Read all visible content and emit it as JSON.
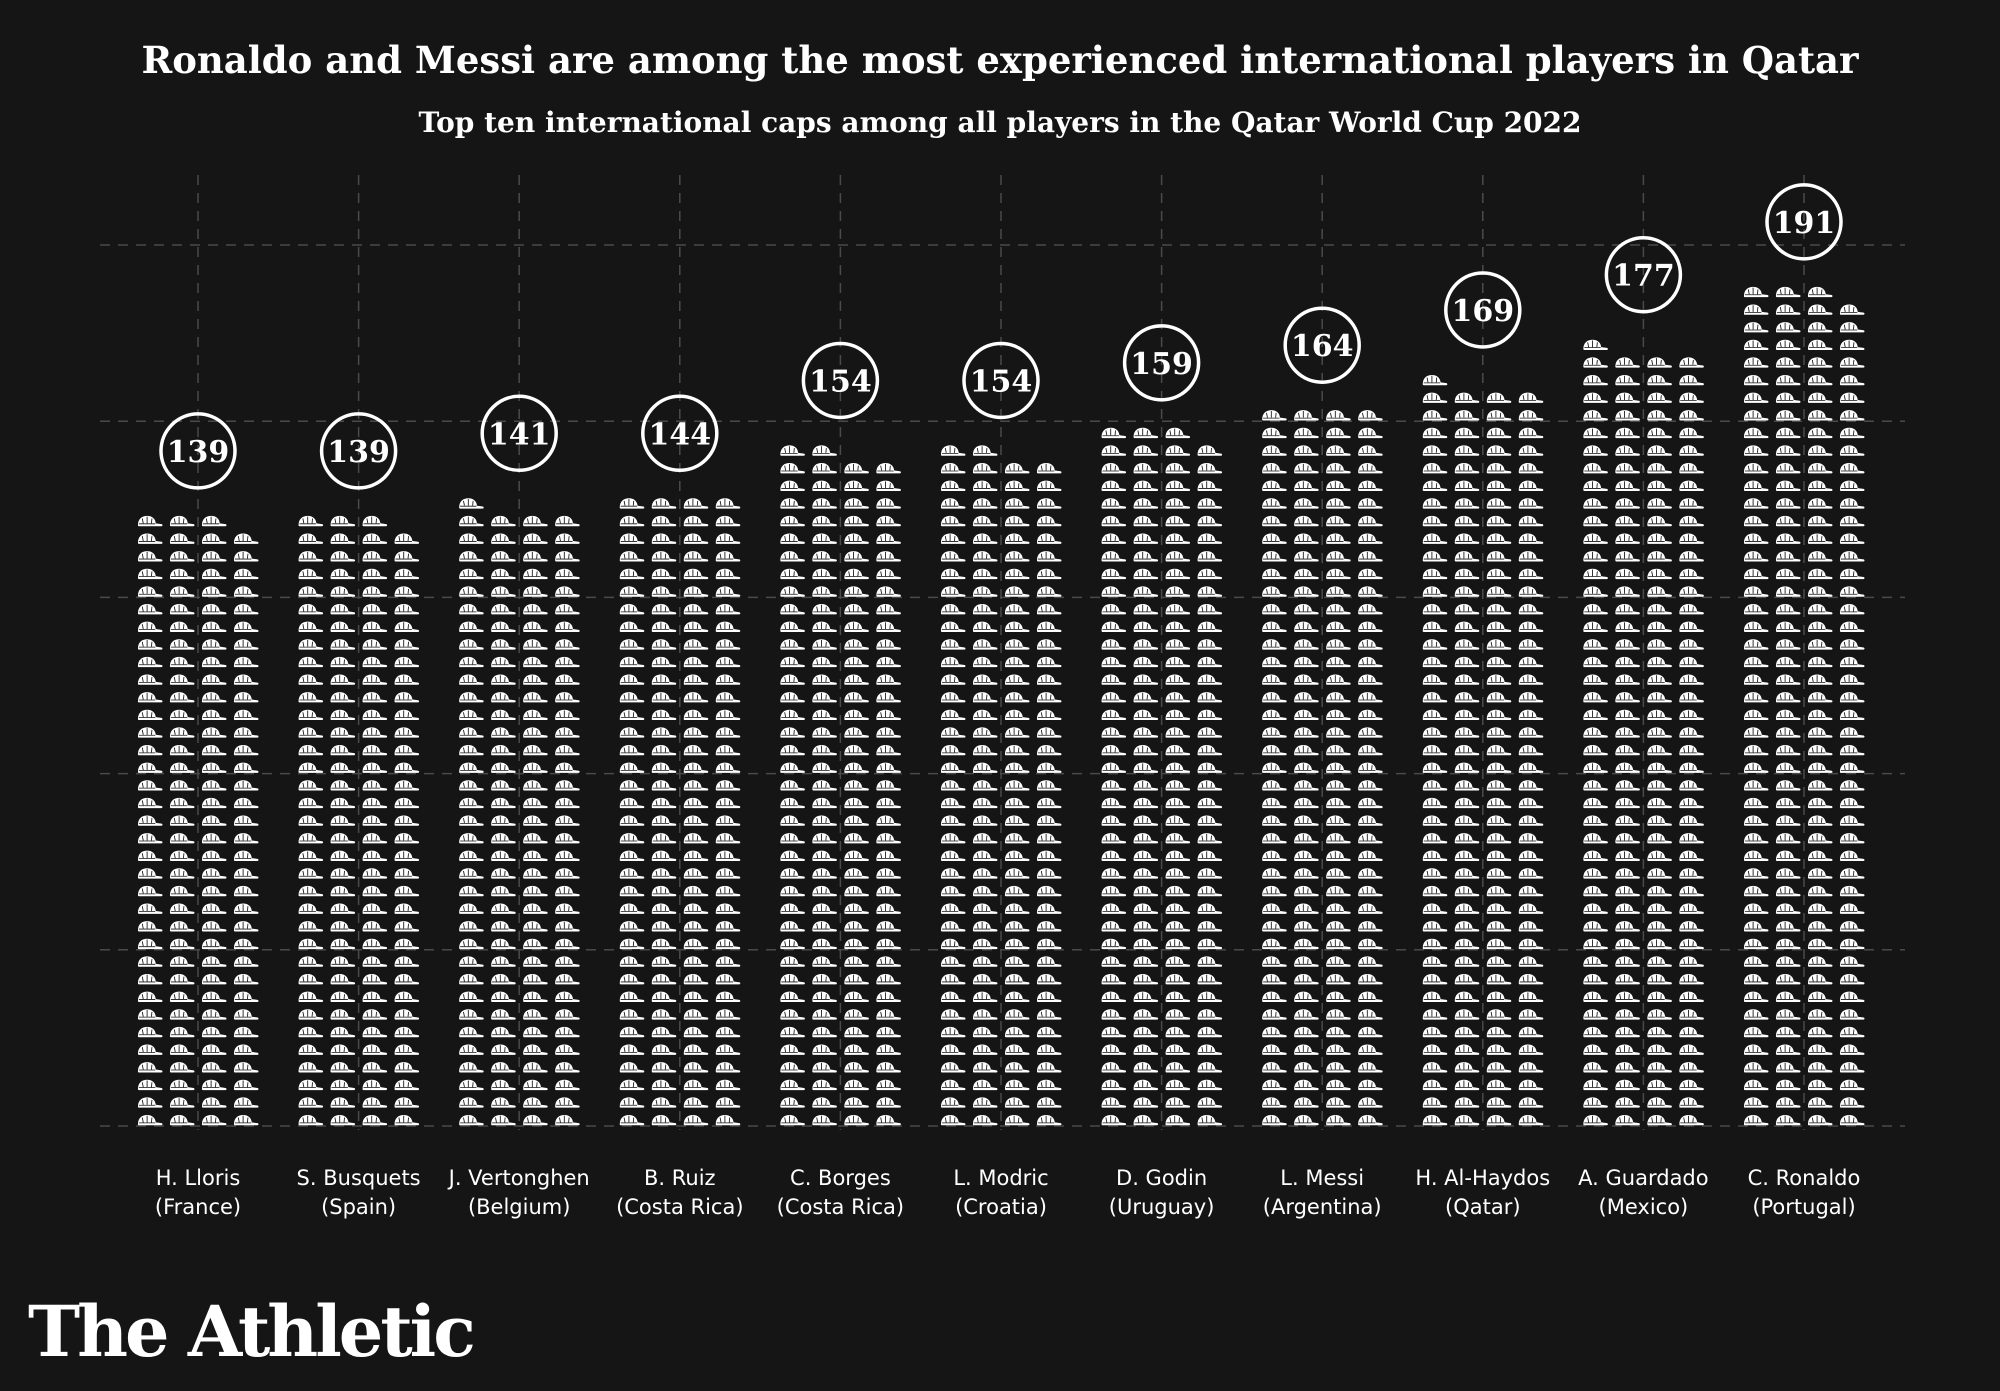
{
  "header": {
    "title": "Ronaldo and Messi are among the most experienced international players in Qatar",
    "subtitle": "Top ten international caps among all players in the Qatar World Cup 2022"
  },
  "brand": {
    "logo_text": "The Athletic"
  },
  "colors": {
    "background": "#151515",
    "marks": "#ffffff",
    "grid": "#4a4a4a"
  },
  "icons": {
    "mark": "cap-icon"
  },
  "chart_data": {
    "type": "bar",
    "title": "Ronaldo and Messi are among the most experienced international players in Qatar",
    "subtitle": "Top ten international caps among all players in the Qatar World Cup 2022",
    "xlabel": "",
    "ylabel": "",
    "grid": true,
    "mark_style": "stacked cap icons, 4 columns per bar",
    "categories": [
      {
        "name": "H. Lloris",
        "country": "(France)"
      },
      {
        "name": "S. Busquets",
        "country": "(Spain)"
      },
      {
        "name": "J. Vertonghen",
        "country": "(Belgium)"
      },
      {
        "name": "B. Ruiz",
        "country": "(Costa Rica)"
      },
      {
        "name": "C. Borges",
        "country": "(Costa Rica)"
      },
      {
        "name": "L. Modric",
        "country": "(Croatia)"
      },
      {
        "name": "D. Godin",
        "country": "(Uruguay)"
      },
      {
        "name": "L. Messi",
        "country": "(Argentina)"
      },
      {
        "name": "H. Al-Haydos",
        "country": "(Qatar)"
      },
      {
        "name": "A. Guardado",
        "country": "(Mexico)"
      },
      {
        "name": "C. Ronaldo",
        "country": "(Portugal)"
      }
    ],
    "values": [
      139,
      139,
      141,
      144,
      154,
      154,
      159,
      164,
      169,
      177,
      191
    ],
    "ylim": [
      0,
      200
    ]
  }
}
